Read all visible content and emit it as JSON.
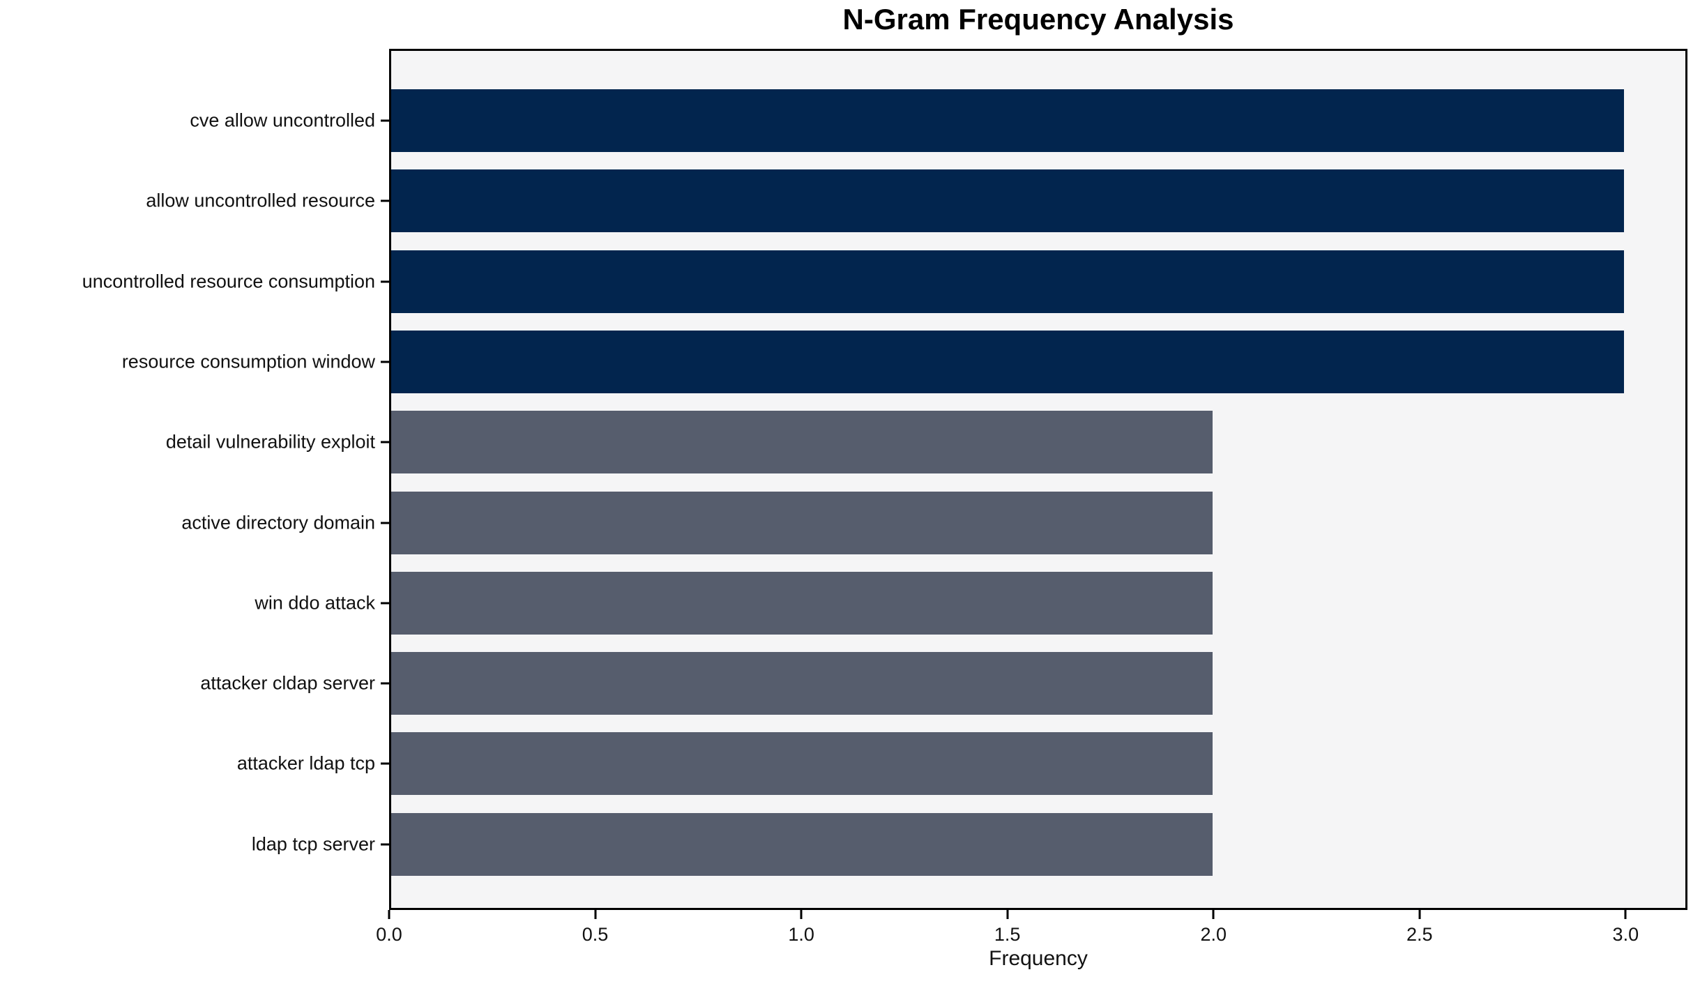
{
  "chart_data": {
    "type": "bar",
    "orientation": "horizontal",
    "title": "N-Gram Frequency Analysis",
    "xlabel": "Frequency",
    "ylabel": "",
    "categories": [
      "cve allow uncontrolled",
      "allow uncontrolled resource",
      "uncontrolled resource consumption",
      "resource consumption window",
      "detail vulnerability exploit",
      "active directory domain",
      "win ddo attack",
      "attacker cldap server",
      "attacker ldap tcp",
      "ldap tcp server"
    ],
    "values": [
      3,
      3,
      3,
      3,
      2,
      2,
      2,
      2,
      2,
      2
    ],
    "bar_colors": [
      "#02254e",
      "#02254e",
      "#02254e",
      "#02254e",
      "#565d6d",
      "#565d6d",
      "#565d6d",
      "#565d6d",
      "#565d6d",
      "#565d6d"
    ],
    "xticks": [
      {
        "value": 0.0,
        "label": "0.0"
      },
      {
        "value": 0.5,
        "label": "0.5"
      },
      {
        "value": 1.0,
        "label": "1.0"
      },
      {
        "value": 1.5,
        "label": "1.5"
      },
      {
        "value": 2.0,
        "label": "2.0"
      },
      {
        "value": 2.5,
        "label": "2.5"
      },
      {
        "value": 3.0,
        "label": "3.0"
      }
    ],
    "xlim": [
      0,
      3.15
    ],
    "grid": false,
    "legend": null,
    "plot_background": "#f5f5f6",
    "axis_color": "#000000"
  }
}
